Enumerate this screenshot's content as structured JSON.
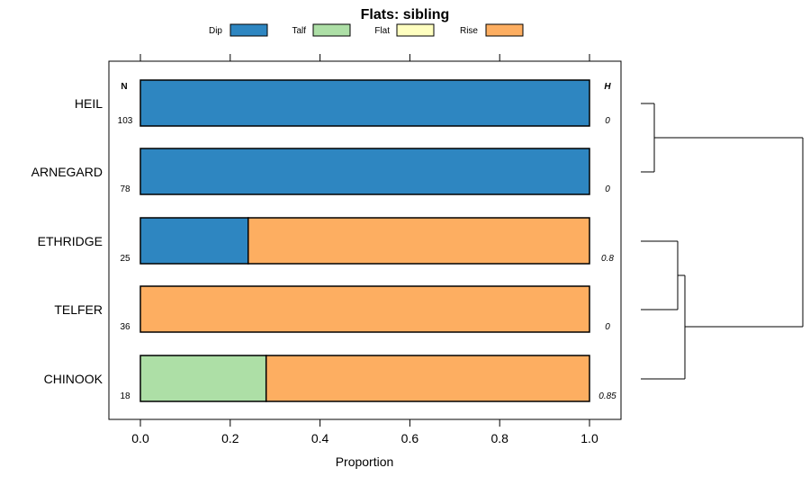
{
  "chart_data": {
    "type": "bar",
    "orientation": "horizontal",
    "stacked": true,
    "title": "Flats: sibling",
    "xlabel": "Proportion",
    "ylabel": "",
    "xlim": [
      0,
      1
    ],
    "x_ticks": [
      "0.0",
      "0.2",
      "0.4",
      "0.6",
      "0.8",
      "1.0"
    ],
    "legend": [
      {
        "name": "Dip",
        "color": "#2e86c1"
      },
      {
        "name": "Talf",
        "color": "#addfa6"
      },
      {
        "name": "Flat",
        "color": "#ffffc0"
      },
      {
        "name": "Rise",
        "color": "#fdae61"
      }
    ],
    "legend_position": "top",
    "n_header": "N",
    "h_header": "H",
    "categories": [
      "HEIL",
      "ARNEGARD",
      "ETHRIDGE",
      "TELFER",
      "CHINOOK"
    ],
    "n_values": [
      "103",
      "78",
      "25",
      "36",
      "18"
    ],
    "h_values": [
      "0",
      "0",
      "0.8",
      "0",
      "0.85"
    ],
    "series": [
      {
        "name": "Dip",
        "values": [
          1.0,
          1.0,
          0.24,
          0.0,
          0.0
        ]
      },
      {
        "name": "Talf",
        "values": [
          0.0,
          0.0,
          0.0,
          0.0,
          0.28
        ]
      },
      {
        "name": "Flat",
        "values": [
          0.0,
          0.0,
          0.0,
          0.0,
          0.0
        ]
      },
      {
        "name": "Rise",
        "values": [
          0.0,
          0.0,
          0.76,
          1.0,
          0.72
        ]
      }
    ],
    "dendrogram": {
      "present": true,
      "merges": [
        [
          "HEIL",
          "ARNEGARD"
        ],
        [
          "ETHRIDGE",
          "TELFER"
        ],
        [
          "ETHRIDGE+TELFER",
          "CHINOOK"
        ],
        [
          "HEIL+ARNEGARD",
          "ETHRIDGE+TELFER+CHINOOK"
        ]
      ]
    }
  }
}
